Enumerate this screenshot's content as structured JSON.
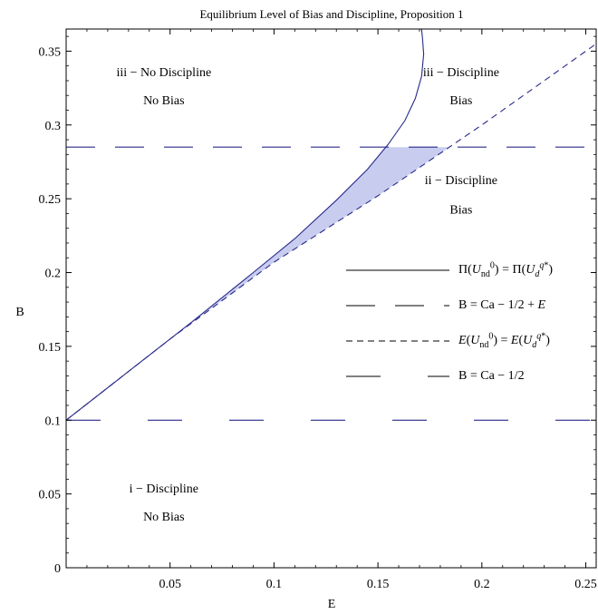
{
  "chart_data": {
    "type": "line",
    "title": "Equilibrium Level of Bias and Discipline, Proposition 1",
    "xlabel": "E",
    "ylabel": "B",
    "xlim": [
      0.0,
      0.255
    ],
    "ylim": [
      0.0,
      0.365
    ],
    "x_ticks": [
      0.05,
      0.1,
      0.15,
      0.2,
      0.25
    ],
    "x_tick_labels": [
      "0.05",
      "0.1",
      "0.15",
      "0.2",
      "0.25"
    ],
    "y_ticks": [
      0,
      0.05,
      0.1,
      0.15,
      0.2,
      0.25,
      0.3,
      0.35
    ],
    "y_tick_labels": [
      "0",
      "0.05",
      "0.1",
      "0.15",
      "0.2",
      "0.25",
      "0.3",
      "0.35"
    ],
    "grid": false,
    "legend_position": "right-middle",
    "colors": {
      "line": "#2a2a8a",
      "fill": "#c8cdf0",
      "axis": "#000000"
    },
    "series": [
      {
        "name": "Π(U_nd^0) = Π(U_d^q*)",
        "legend_html": "Π(<i>U</i><sub>nd</sub><sup>0</sup>) = Π(<i>U</i><sub><i>d</i></sub><sup><i>q</i>*</sup>)",
        "style": "solid",
        "x": [
          0.0,
          0.03,
          0.06,
          0.09,
          0.11,
          0.13,
          0.145,
          0.155,
          0.163,
          0.168,
          0.171,
          0.172,
          0.1715,
          0.171
        ],
        "y": [
          0.1,
          0.133,
          0.166,
          0.2,
          0.223,
          0.249,
          0.27,
          0.287,
          0.303,
          0.318,
          0.333,
          0.348,
          0.358,
          0.365
        ]
      },
      {
        "name": "B = Ca − 1/2 + E",
        "legend_html": "B = Ca − 1/2 + <i>E</i>",
        "style": "long-dash",
        "x": [
          0.0,
          0.255
        ],
        "y": [
          0.285,
          0.285
        ]
      },
      {
        "name": "E(U_nd^0) = E(U_d^q*)",
        "legend_html": "<i>E</i>(<i>U</i><sub>nd</sub><sup>0</sup>) = <i>E</i>(<i>U</i><sub><i>d</i></sub><sup><i>q</i>*</sup>)",
        "style": "short-dash",
        "x": [
          0.0,
          0.05,
          0.1,
          0.15,
          0.2,
          0.255
        ],
        "y": [
          0.1,
          0.155,
          0.207,
          0.252,
          0.3,
          0.355
        ]
      },
      {
        "name": "B = Ca − 1/2",
        "legend_html": "B = Ca − 1/2",
        "style": "long-dash-wide",
        "x": [
          0.0,
          0.255
        ],
        "y": [
          0.1,
          0.1
        ]
      }
    ],
    "shaded_region": {
      "y_range": [
        0.1,
        0.285
      ],
      "between": [
        "Π(U_nd^0) = Π(U_d^q*)",
        "E(U_nd^0) = E(U_d^q*)"
      ]
    },
    "annotations": [
      {
        "id": "iii-nd-nb-1",
        "text": "iii − No Discipline",
        "x": 0.047,
        "y": 0.336
      },
      {
        "id": "iii-nd-nb-2",
        "text": "No Bias",
        "x": 0.047,
        "y": 0.317
      },
      {
        "id": "iii-d-b-1",
        "text": "iii − Discipline",
        "x": 0.19,
        "y": 0.336
      },
      {
        "id": "iii-d-b-2",
        "text": "Bias",
        "x": 0.19,
        "y": 0.317
      },
      {
        "id": "ii-d-b-1",
        "text": "ii − Discipline",
        "x": 0.19,
        "y": 0.263
      },
      {
        "id": "ii-d-b-2",
        "text": "Bias",
        "x": 0.19,
        "y": 0.243
      },
      {
        "id": "i-d-nb-1",
        "text": "i − Discipline",
        "x": 0.047,
        "y": 0.054
      },
      {
        "id": "i-d-nb-2",
        "text": "No Bias",
        "x": 0.047,
        "y": 0.035
      }
    ]
  }
}
